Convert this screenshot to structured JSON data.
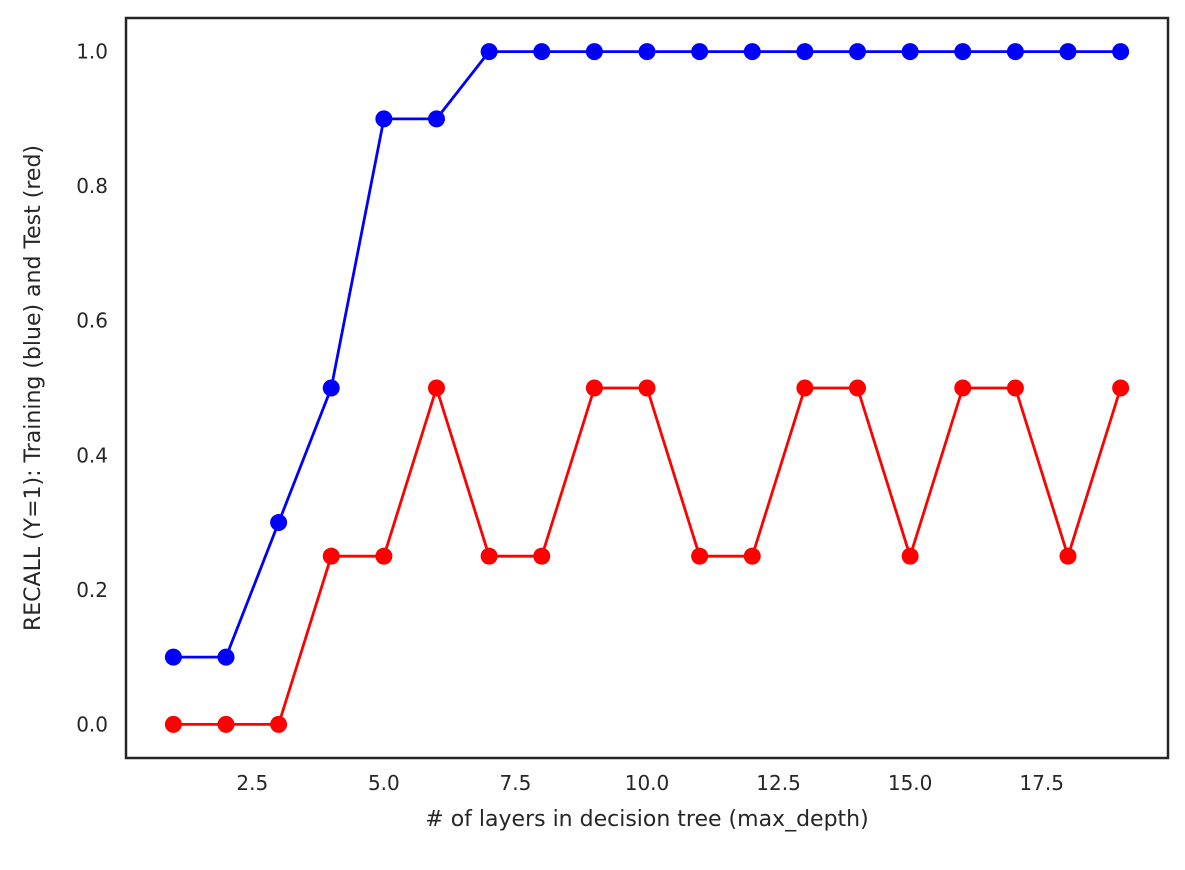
{
  "chart_data": {
    "type": "line",
    "title": "",
    "xlabel": "# of layers in decision tree (max_depth)",
    "ylabel": "RECALL (Y=1): Training (blue) and Test (red)",
    "xlim": [
      0.1,
      19.9
    ],
    "ylim": [
      -0.05,
      1.05
    ],
    "grid": false,
    "legend": "none",
    "xticks": [
      2.5,
      5.0,
      7.5,
      10.0,
      12.5,
      15.0,
      17.5
    ],
    "xtick_labels": [
      "2.5",
      "5.0",
      "7.5",
      "10.0",
      "12.5",
      "15.0",
      "17.5"
    ],
    "yticks": [
      0.0,
      0.2,
      0.4,
      0.6,
      0.8,
      1.0
    ],
    "ytick_labels": [
      "0.0",
      "0.2",
      "0.4",
      "0.6",
      "0.8",
      "1.0"
    ],
    "x": [
      1,
      2,
      3,
      4,
      5,
      6,
      7,
      8,
      9,
      10,
      11,
      12,
      13,
      14,
      15,
      16,
      17,
      18,
      19
    ],
    "series": [
      {
        "color": "#0000ff",
        "values": [
          0.1,
          0.1,
          0.3,
          0.5,
          0.9,
          0.9,
          1.0,
          1.0,
          1.0,
          1.0,
          1.0,
          1.0,
          1.0,
          1.0,
          1.0,
          1.0,
          1.0,
          1.0,
          1.0
        ]
      },
      {
        "color": "#ff0000",
        "values": [
          0.0,
          0.0,
          0.0,
          0.25,
          0.25,
          0.5,
          0.25,
          0.25,
          0.5,
          0.5,
          0.25,
          0.25,
          0.5,
          0.5,
          0.25,
          0.5,
          0.5,
          0.25,
          0.5
        ]
      }
    ]
  }
}
